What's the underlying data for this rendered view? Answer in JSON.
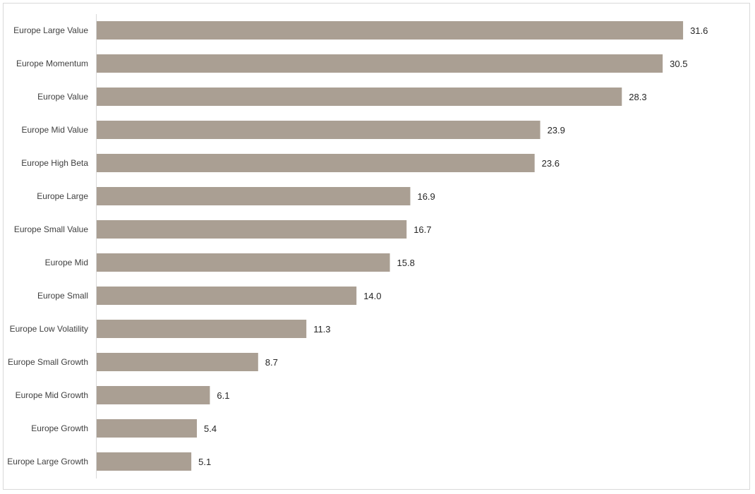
{
  "chart_data": {
    "type": "bar",
    "orientation": "horizontal",
    "title": "",
    "xlabel": "",
    "ylabel": "",
    "grid": false,
    "legend": "none",
    "bar_color": "#aa9f93",
    "categories": [
      "Europe Large Value",
      "Europe Momentum",
      "Europe Value",
      "Europe Mid Value",
      "Europe High Beta",
      "Europe Large",
      "Europe Small Value",
      "Europe Mid",
      "Europe Small",
      "Europe Low Volatility",
      "Europe Small Growth",
      "Europe Mid Growth",
      "Europe Growth",
      "Europe Large Growth"
    ],
    "values": [
      31.6,
      30.5,
      28.3,
      23.9,
      23.6,
      16.9,
      16.7,
      15.8,
      14.0,
      11.3,
      8.7,
      6.1,
      5.4,
      5.1
    ],
    "value_labels": [
      "31.6",
      "30.5",
      "28.3",
      "23.9",
      "23.6",
      "16.9",
      "16.7",
      "15.8",
      "14.0",
      "11.3",
      "8.7",
      "6.1",
      "5.4",
      "5.1"
    ]
  }
}
